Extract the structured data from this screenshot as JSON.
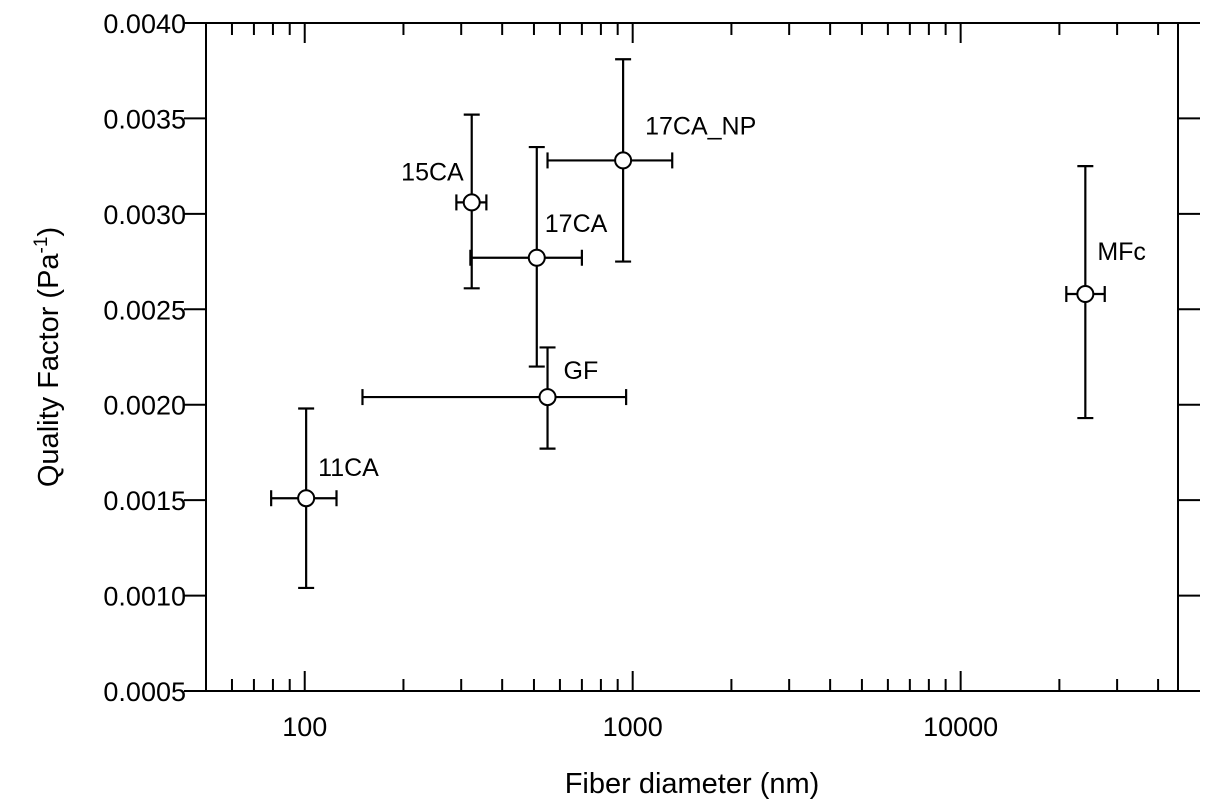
{
  "chart_data": {
    "type": "scatter",
    "title": "",
    "xlabel": "Fiber diameter (nm)",
    "ylabel_main": "Quality Factor (Pa",
    "ylabel_sup": "-1",
    "ylabel_close": ")",
    "x_scale": "log",
    "xlim": [
      50,
      46000
    ],
    "ylim": [
      0.0005,
      0.004
    ],
    "x_ticks": [
      100,
      1000,
      10000
    ],
    "x_tick_labels": [
      "100",
      "1000",
      "10000"
    ],
    "y_ticks": [
      0.0005,
      0.001,
      0.0015,
      0.002,
      0.0025,
      0.003,
      0.0035,
      0.004
    ],
    "y_tick_labels": [
      "0.0005",
      "0.0010",
      "0.0015",
      "0.0020",
      "0.0025",
      "0.0030",
      "0.0035",
      "0.0040"
    ],
    "grid": false,
    "legend": "none",
    "points": [
      {
        "label": "11CA",
        "x": 101,
        "y": 0.00151,
        "x_err": [
          79,
          125
        ],
        "y_err": [
          0.00104,
          0.00198
        ]
      },
      {
        "label": "15CA",
        "x": 323,
        "y": 0.00306,
        "x_err": [
          290,
          358
        ],
        "y_err": [
          0.00261,
          0.00352
        ]
      },
      {
        "label": "17CA",
        "x": 510,
        "y": 0.00277,
        "x_err": [
          320,
          700
        ],
        "y_err": [
          0.0022,
          0.00335
        ]
      },
      {
        "label": "GF",
        "x": 550,
        "y": 0.00204,
        "x_err": [
          150,
          955
        ],
        "y_err": [
          0.00177,
          0.0023
        ]
      },
      {
        "label": "17CA_NP",
        "x": 935,
        "y": 0.00328,
        "x_err": [
          550,
          1320
        ],
        "y_err": [
          0.00275,
          0.00381
        ]
      },
      {
        "label": "MFc",
        "x": 24000,
        "y": 0.00258,
        "x_err": [
          21000,
          27500
        ],
        "y_err": [
          0.00193,
          0.00325
        ]
      }
    ]
  }
}
